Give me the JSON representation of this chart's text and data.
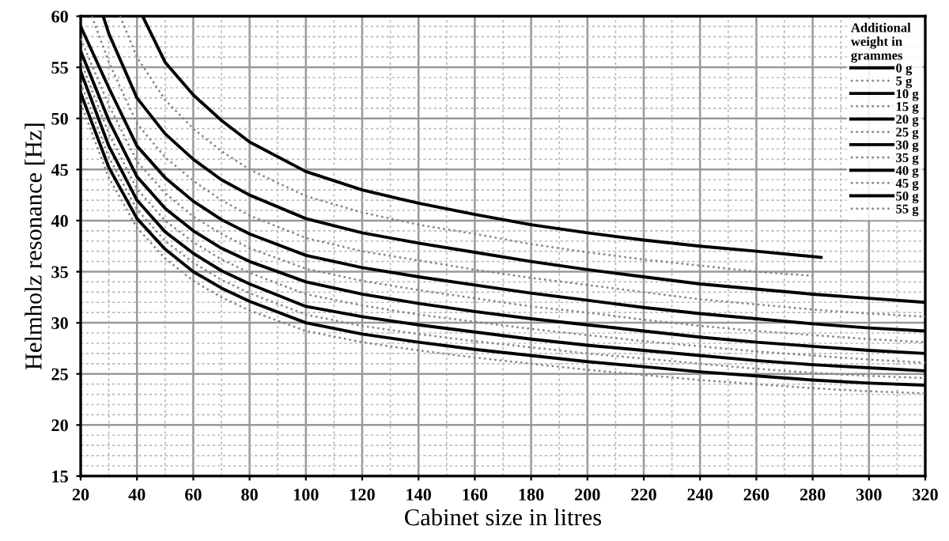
{
  "chart_data": {
    "type": "line",
    "xlabel": "Cabinet size in litres",
    "ylabel": "Helmholz resonance [Hz]",
    "legend_title": "Additional weight in grammes",
    "xlim": [
      20,
      320
    ],
    "xticks": [
      20,
      40,
      60,
      80,
      100,
      120,
      140,
      160,
      180,
      200,
      220,
      240,
      260,
      280,
      300,
      320
    ],
    "ylim": [
      15,
      60
    ],
    "yticks": [
      15,
      20,
      25,
      30,
      35,
      40,
      45,
      50,
      55,
      60
    ],
    "grid": true,
    "legend": "top right",
    "marker": "none",
    "series": [
      {
        "name": "0 g",
        "color": "#000000",
        "line_style": "solid",
        "x": [
          42,
          50,
          60,
          70,
          80,
          100,
          120,
          140,
          160,
          180,
          200,
          220,
          240,
          260,
          283
        ],
        "values": [
          60,
          55.5,
          52.3,
          49.8,
          47.7,
          44.8,
          43.0,
          41.7,
          40.6,
          39.6,
          38.8,
          38.1,
          37.5,
          37.0,
          36.4
        ]
      },
      {
        "name": "5 g",
        "color": "#808080",
        "line_style": "dotted",
        "x": [
          34,
          40,
          50,
          60,
          70,
          80,
          100,
          120,
          140,
          160,
          180,
          200,
          220,
          240,
          260,
          280
        ],
        "values": [
          60,
          56,
          51.8,
          49.0,
          46.8,
          45.0,
          42.4,
          40.8,
          39.6,
          38.7,
          37.7,
          36.9,
          36.2,
          35.6,
          35.0,
          34.6
        ]
      },
      {
        "name": "10 g",
        "color": "#000000",
        "line_style": "solid",
        "x": [
          28,
          30,
          40,
          50,
          60,
          70,
          80,
          100,
          120,
          140,
          160,
          180,
          200,
          220,
          240,
          260,
          280,
          300,
          320
        ],
        "values": [
          60,
          58.3,
          52.0,
          48.5,
          46.0,
          44.0,
          42.5,
          40.2,
          38.8,
          37.8,
          36.9,
          36.0,
          35.2,
          34.5,
          33.8,
          33.3,
          32.8,
          32.4,
          32.0
        ]
      },
      {
        "name": "15 g",
        "color": "#808080",
        "line_style": "dotted",
        "x": [
          24,
          30,
          40,
          50,
          60,
          70,
          80,
          100,
          120,
          140,
          160,
          180,
          200,
          220,
          240,
          260,
          280,
          300,
          320
        ],
        "values": [
          60,
          55.5,
          49.5,
          46.2,
          43.9,
          42.0,
          40.5,
          38.3,
          37.0,
          36.1,
          35.2,
          34.4,
          33.7,
          33.0,
          32.3,
          31.8,
          31.3,
          30.9,
          30.6
        ]
      },
      {
        "name": "20 g",
        "color": "#000000",
        "line_style": "solid",
        "x": [
          20,
          30,
          40,
          50,
          60,
          70,
          80,
          100,
          120,
          140,
          160,
          180,
          200,
          220,
          240,
          260,
          280,
          300,
          320
        ],
        "values": [
          59.0,
          53.0,
          47.3,
          44.2,
          41.9,
          40.1,
          38.7,
          36.6,
          35.4,
          34.5,
          33.7,
          32.9,
          32.2,
          31.5,
          30.9,
          30.4,
          29.9,
          29.5,
          29.2
        ]
      },
      {
        "name": "25 g",
        "color": "#808080",
        "line_style": "dotted",
        "x": [
          20,
          30,
          40,
          50,
          60,
          70,
          80,
          100,
          120,
          140,
          160,
          180,
          200,
          220,
          240,
          260,
          280,
          300,
          320
        ],
        "values": [
          57.8,
          51.3,
          45.8,
          42.7,
          40.4,
          38.7,
          37.3,
          35.3,
          34.1,
          33.2,
          32.4,
          31.6,
          31.0,
          30.3,
          29.7,
          29.2,
          28.8,
          28.4,
          28.1
        ]
      },
      {
        "name": "30 g",
        "color": "#000000",
        "line_style": "solid",
        "x": [
          20,
          30,
          40,
          50,
          60,
          70,
          80,
          100,
          120,
          140,
          160,
          180,
          200,
          220,
          240,
          260,
          280,
          300,
          320
        ],
        "values": [
          56.6,
          49.8,
          44.3,
          41.2,
          39.0,
          37.3,
          36.0,
          34.0,
          32.8,
          31.9,
          31.1,
          30.4,
          29.8,
          29.2,
          28.6,
          28.1,
          27.7,
          27.3,
          27.0
        ]
      },
      {
        "name": "35 g",
        "color": "#808080",
        "line_style": "dotted",
        "x": [
          20,
          30,
          40,
          50,
          60,
          70,
          80,
          100,
          120,
          140,
          160,
          180,
          200,
          220,
          240,
          260,
          280,
          300,
          320
        ],
        "values": [
          55.6,
          48.5,
          43.1,
          40.0,
          37.9,
          36.2,
          34.9,
          32.8,
          31.7,
          30.8,
          30.1,
          29.4,
          28.8,
          28.2,
          27.7,
          27.2,
          26.8,
          26.4,
          26.1
        ]
      },
      {
        "name": "40 g",
        "color": "#000000",
        "line_style": "solid",
        "x": [
          20,
          30,
          40,
          50,
          60,
          70,
          80,
          100,
          120,
          140,
          160,
          180,
          200,
          220,
          240,
          260,
          280,
          300,
          320
        ],
        "values": [
          54.6,
          47.3,
          42.0,
          38.9,
          36.8,
          35.1,
          33.8,
          31.6,
          30.6,
          29.8,
          29.1,
          28.4,
          27.8,
          27.3,
          26.8,
          26.3,
          25.9,
          25.6,
          25.3
        ]
      },
      {
        "name": "45 g",
        "color": "#808080",
        "line_style": "dotted",
        "x": [
          20,
          30,
          40,
          50,
          60,
          70,
          80,
          100,
          120,
          140,
          160,
          180,
          200,
          220,
          240,
          260,
          280,
          300,
          320
        ],
        "values": [
          53.5,
          46.2,
          41.1,
          38.0,
          35.9,
          34.2,
          32.9,
          30.8,
          29.7,
          28.9,
          28.2,
          27.6,
          27.0,
          26.5,
          26.0,
          25.5,
          25.1,
          24.8,
          24.6
        ]
      },
      {
        "name": "50 g",
        "color": "#000000",
        "line_style": "solid",
        "x": [
          20,
          30,
          40,
          50,
          60,
          70,
          80,
          100,
          120,
          140,
          160,
          180,
          200,
          220,
          240,
          260,
          280,
          300,
          320
        ],
        "values": [
          52.5,
          45.2,
          40.2,
          37.2,
          35.0,
          33.4,
          32.1,
          30.0,
          28.9,
          28.1,
          27.4,
          26.8,
          26.2,
          25.7,
          25.2,
          24.8,
          24.4,
          24.1,
          23.9
        ]
      },
      {
        "name": "55 g",
        "color": "#808080",
        "line_style": "dotted",
        "x": [
          20,
          30,
          40,
          50,
          60,
          70,
          80,
          100,
          120,
          140,
          160,
          180,
          200,
          220,
          240,
          260,
          280,
          300,
          320
        ],
        "values": [
          51.5,
          44.2,
          39.3,
          36.3,
          34.1,
          32.5,
          31.2,
          29.2,
          28.1,
          27.3,
          26.6,
          26.0,
          25.4,
          24.9,
          24.4,
          24.0,
          23.6,
          23.3,
          23.1
        ]
      }
    ]
  }
}
